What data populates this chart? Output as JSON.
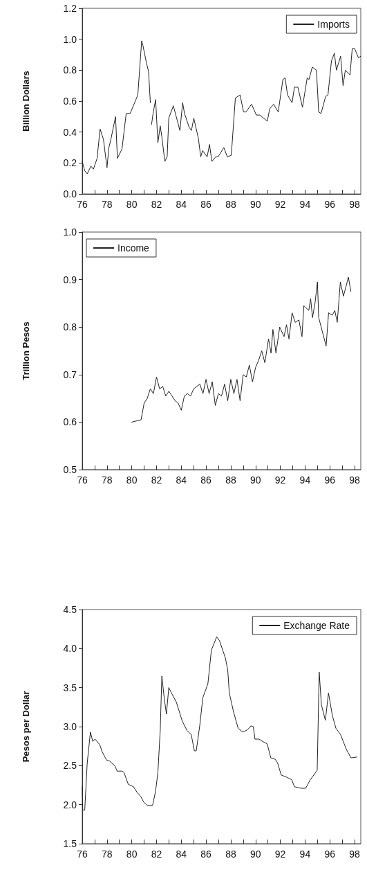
{
  "chart_data": [
    {
      "type": "line",
      "ylabel": "Billion Dollars",
      "legend": "top right",
      "xlim": [
        76,
        98.5
      ],
      "ylim": [
        0,
        1.2
      ],
      "yticks": [
        {
          "value": 0,
          "label": "0.0"
        },
        0.2,
        0.4,
        0.6,
        0.8,
        {
          "value": 1,
          "label": "1.0"
        },
        1.2
      ],
      "xticks": [
        76,
        {
          "value": 77,
          "label": null
        },
        78,
        {
          "value": 79,
          "label": null
        },
        80,
        {
          "value": 81,
          "label": null
        },
        82,
        {
          "value": 83,
          "label": null
        },
        84,
        {
          "value": 85,
          "label": null
        },
        86,
        {
          "value": 87,
          "label": null
        },
        88,
        {
          "value": 89,
          "label": null
        },
        90,
        {
          "value": 91,
          "label": null
        },
        92,
        {
          "value": 93,
          "label": null
        },
        94,
        {
          "value": 95,
          "label": null
        },
        96,
        {
          "value": 97,
          "label": null
        },
        98
      ],
      "x": [
        76.0,
        76.2,
        76.4,
        76.7,
        76.9,
        77.2,
        77.44,
        77.72,
        77.81,
        78.0,
        78.15,
        78.28,
        78.69,
        78.84,
        79.21,
        79.55,
        79.87,
        80.49,
        80.8,
        80.9,
        81.18,
        81.36,
        81.5,
        81.55,
        81.6,
        81.74,
        81.93,
        82.11,
        82.3,
        82.43,
        82.67,
        82.86,
        82.99,
        83.36,
        83.89,
        84.11,
        84.26,
        84.64,
        84.82,
        85.01,
        85.38,
        85.57,
        85.72,
        86.09,
        86.28,
        86.47,
        86.78,
        86.97,
        87.44,
        87.72,
        88.04,
        88.37,
        88.75,
        89.03,
        89.22,
        89.68,
        90.06,
        90.34,
        90.95,
        91.14,
        91.46,
        91.83,
        92.21,
        92.39,
        92.58,
        92.95,
        93.14,
        93.42,
        93.79,
        94.17,
        94.32,
        94.58,
        94.92,
        95.1,
        95.29,
        95.66,
        95.85,
        96.13,
        96.37,
        96.53,
        96.87,
        97.07,
        97.25,
        97.63,
        97.81,
        98.0,
        98.31,
        98.5
      ],
      "series": [
        {
          "name": "Imports",
          "color": "#222222",
          "values": [
            0.21,
            0.15,
            0.13,
            0.18,
            0.16,
            0.23,
            0.42,
            0.35,
            0.29,
            0.17,
            0.3,
            0.34,
            0.5,
            0.23,
            0.29,
            0.52,
            0.52,
            0.64,
            0.99,
            0.96,
            0.85,
            0.79,
            0.59,
            null,
            0.45,
            0.53,
            0.61,
            0.33,
            0.44,
            0.37,
            0.21,
            0.24,
            0.49,
            0.57,
            0.41,
            0.59,
            0.52,
            0.43,
            0.41,
            0.49,
            0.36,
            0.24,
            0.28,
            0.24,
            0.32,
            0.21,
            0.24,
            0.24,
            0.3,
            0.24,
            0.25,
            0.62,
            0.64,
            0.53,
            0.53,
            0.58,
            0.51,
            0.51,
            0.47,
            0.55,
            0.58,
            0.53,
            0.74,
            0.75,
            0.64,
            0.59,
            0.69,
            0.69,
            0.56,
            0.75,
            0.74,
            0.82,
            0.8,
            0.53,
            0.52,
            0.63,
            0.64,
            0.86,
            0.91,
            0.8,
            0.89,
            0.7,
            0.8,
            0.77,
            0.94,
            0.94,
            0.88,
            0.89
          ]
        }
      ]
    },
    {
      "type": "line",
      "ylabel": "Trillion Pesos",
      "legend": "top left",
      "xlim": [
        76,
        98.5
      ],
      "ylim": [
        0.5,
        1.0
      ],
      "yticks": [
        0.5,
        0.6,
        0.7,
        0.8,
        0.9,
        {
          "value": 1,
          "label": "1.0"
        }
      ],
      "xticks": [
        76,
        {
          "value": 77,
          "label": null
        },
        78,
        {
          "value": 79,
          "label": null
        },
        80,
        {
          "value": 81,
          "label": null
        },
        82,
        {
          "value": 83,
          "label": null
        },
        84,
        {
          "value": 85,
          "label": null
        },
        86,
        {
          "value": 87,
          "label": null
        },
        88,
        {
          "value": 89,
          "label": null
        },
        90,
        {
          "value": 91,
          "label": null
        },
        92,
        {
          "value": 93,
          "label": null
        },
        94,
        {
          "value": 95,
          "label": null
        },
        96,
        {
          "value": 97,
          "label": null
        },
        98
      ],
      "x": [
        80.0,
        80.75,
        81.0,
        81.25,
        81.5,
        81.75,
        82.0,
        82.25,
        82.5,
        82.75,
        83.0,
        83.25,
        83.5,
        83.75,
        84.0,
        84.25,
        84.5,
        84.75,
        85.0,
        85.25,
        85.5,
        85.75,
        86.0,
        86.25,
        86.5,
        86.75,
        87.0,
        87.25,
        87.5,
        87.75,
        88.0,
        88.25,
        88.5,
        88.75,
        89.0,
        89.25,
        89.5,
        89.75,
        90.0,
        90.25,
        90.5,
        90.75,
        90.9,
        91.05,
        91.25,
        91.4,
        91.65,
        91.95,
        92.3,
        92.5,
        92.7,
        92.95,
        93.2,
        93.5,
        93.75,
        93.9,
        94.3,
        94.45,
        94.6,
        94.8,
        95.0,
        95.1,
        95.7,
        95.9,
        96.2,
        96.4,
        96.6,
        96.85,
        97.1,
        97.5,
        97.7
      ],
      "series": [
        {
          "name": "Income",
          "color": "#222222",
          "values": [
            0.6,
            0.605,
            0.64,
            0.65,
            0.67,
            0.66,
            0.695,
            0.67,
            0.675,
            0.655,
            0.665,
            0.655,
            0.645,
            0.64,
            0.625,
            0.655,
            0.66,
            0.655,
            0.67,
            0.675,
            0.68,
            0.66,
            0.69,
            0.66,
            0.685,
            0.635,
            0.66,
            0.655,
            0.68,
            0.645,
            0.69,
            0.66,
            0.69,
            0.645,
            0.7,
            0.695,
            0.72,
            0.685,
            0.715,
            0.73,
            0.75,
            0.725,
            0.75,
            0.775,
            0.745,
            0.795,
            0.745,
            0.8,
            0.78,
            0.805,
            0.775,
            0.83,
            0.81,
            0.815,
            0.78,
            0.845,
            0.835,
            0.86,
            0.82,
            0.85,
            0.895,
            0.82,
            0.76,
            0.83,
            0.825,
            0.835,
            0.81,
            0.895,
            0.865,
            0.905,
            0.875
          ]
        }
      ]
    },
    {
      "type": "line",
      "ylabel": "Pesos per Dollar",
      "legend": "top right",
      "xlim": [
        76,
        98.5
      ],
      "ylim": [
        1.5,
        4.5
      ],
      "yticks": [
        1.5,
        {
          "value": 2,
          "label": "2.0"
        },
        2.5,
        {
          "value": 3,
          "label": "3.0"
        },
        3.5,
        {
          "value": 4,
          "label": "4.0"
        },
        4.5
      ],
      "xticks": [
        76,
        {
          "value": 77,
          "label": null
        },
        78,
        {
          "value": 79,
          "label": null
        },
        80,
        {
          "value": 81,
          "label": null
        },
        82,
        {
          "value": 83,
          "label": null
        },
        84,
        {
          "value": 85,
          "label": null
        },
        86,
        {
          "value": 87,
          "label": null
        },
        88,
        {
          "value": 89,
          "label": null
        },
        90,
        {
          "value": 91,
          "label": null
        },
        92,
        {
          "value": 93,
          "label": null
        },
        94,
        {
          "value": 95,
          "label": null
        },
        96,
        {
          "value": 97,
          "label": null
        },
        98
      ],
      "x": [
        76.0,
        76.04,
        76.2,
        76.4,
        76.66,
        76.85,
        77.03,
        77.41,
        77.6,
        77.97,
        78.2,
        78.63,
        78.82,
        79.23,
        79.38,
        79.72,
        80.14,
        80.42,
        80.7,
        80.98,
        81.26,
        81.68,
        81.92,
        82.11,
        82.3,
        82.43,
        82.62,
        82.8,
        82.99,
        83.18,
        83.61,
        84.08,
        84.46,
        84.8,
        85.06,
        85.21,
        85.49,
        85.74,
        86.15,
        86.43,
        86.86,
        87.09,
        87.56,
        87.75,
        87.88,
        88.22,
        88.59,
        88.97,
        89.35,
        89.63,
        89.82,
        89.95,
        90.29,
        90.57,
        90.94,
        91.23,
        91.6,
        91.79,
        92.07,
        92.54,
        92.92,
        93.14,
        93.67,
        94.05,
        94.42,
        94.98,
        95.14,
        95.32,
        95.64,
        95.89,
        96.21,
        96.49,
        96.86,
        97.33,
        97.71,
        98.18
      ],
      "series": [
        {
          "name": "Exchange Rate",
          "color": "#222222",
          "values": [
            2.23,
            1.93,
            1.93,
            2.53,
            2.93,
            2.81,
            2.84,
            2.77,
            2.68,
            2.57,
            2.56,
            2.5,
            2.43,
            2.43,
            2.41,
            2.26,
            2.23,
            2.16,
            2.11,
            2.03,
            1.99,
            1.99,
            2.17,
            2.41,
            2.95,
            3.65,
            3.37,
            3.16,
            3.5,
            3.44,
            3.31,
            3.07,
            2.95,
            2.9,
            2.69,
            2.69,
            3.01,
            3.37,
            3.55,
            3.98,
            4.15,
            4.1,
            3.88,
            3.73,
            3.43,
            3.19,
            2.98,
            2.93,
            2.96,
            3.01,
            3.0,
            2.84,
            2.84,
            2.81,
            2.78,
            2.6,
            2.58,
            2.53,
            2.38,
            2.35,
            2.32,
            2.23,
            2.21,
            2.21,
            2.32,
            2.44,
            3.7,
            3.28,
            3.08,
            3.43,
            3.14,
            2.98,
            2.9,
            2.71,
            2.6,
            2.61
          ]
        }
      ]
    }
  ]
}
